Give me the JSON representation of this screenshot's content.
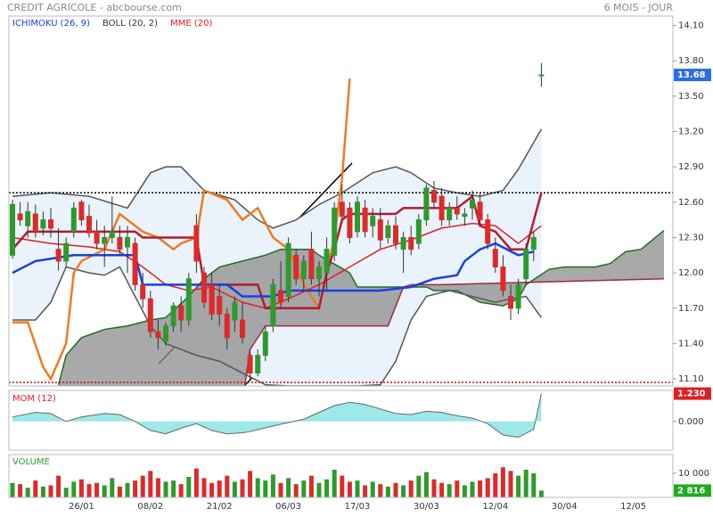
{
  "header": {
    "title": "CREDIT AGRICOLE - abcbourse.com",
    "period": "6 MOIS - JOUR"
  },
  "chart_data": [
    {
      "type": "candlestick",
      "legend": [
        {
          "name": "ICHIMOKU (26, 9)",
          "color": "#1a3fe0"
        },
        {
          "name": "BOLL (20, 2)",
          "color": "#333333"
        },
        {
          "name": "MME (20)",
          "color": "#e02020"
        }
      ],
      "categories": [
        null,
        null,
        null,
        null,
        null,
        null,
        null,
        null,
        null,
        "26/01",
        null,
        null,
        null,
        null,
        null,
        null,
        null,
        null,
        "08/02",
        null,
        null,
        null,
        null,
        null,
        null,
        null,
        null,
        "21/02",
        null,
        null,
        null,
        null,
        null,
        null,
        null,
        null,
        "06/03",
        null,
        null,
        null,
        null,
        null,
        null,
        null,
        null,
        "17/03",
        null,
        null,
        null,
        null,
        null,
        null,
        null,
        null,
        "30/03",
        null,
        null,
        null,
        null,
        null,
        null,
        null,
        null,
        "12/04",
        null,
        null,
        null,
        null,
        null,
        null,
        null,
        null,
        "30/04",
        null,
        null,
        null,
        null,
        null,
        null,
        null,
        null,
        "12/05",
        null,
        null,
        null,
        null
      ],
      "ohlc": [
        [
          12.15,
          12.62,
          12.12,
          12.58
        ],
        [
          12.5,
          12.6,
          12.4,
          12.45
        ],
        [
          12.4,
          12.6,
          12.3,
          12.52
        ],
        [
          12.5,
          12.58,
          12.3,
          12.35
        ],
        [
          12.38,
          12.52,
          12.32,
          12.45
        ],
        [
          12.45,
          12.55,
          12.3,
          12.38
        ],
        [
          12.2,
          12.38,
          12.02,
          12.1
        ],
        [
          12.1,
          12.3,
          12.05,
          12.25
        ],
        [
          12.35,
          12.6,
          12.3,
          12.55
        ],
        [
          12.6,
          12.62,
          12.4,
          12.45
        ],
        [
          12.48,
          12.58,
          12.3,
          12.34
        ],
        [
          12.35,
          12.45,
          12.2,
          12.25
        ],
        [
          12.25,
          12.4,
          12.05,
          12.3
        ],
        [
          12.3,
          12.65,
          12.25,
          12.35
        ],
        [
          12.3,
          12.4,
          12.15,
          12.2
        ],
        [
          12.22,
          12.4,
          12.0,
          12.3
        ],
        [
          12.25,
          12.3,
          11.85,
          11.9
        ],
        [
          11.9,
          12.0,
          11.7,
          11.78
        ],
        [
          11.78,
          11.85,
          11.45,
          11.5
        ],
        [
          11.5,
          11.6,
          11.35,
          11.45
        ],
        [
          11.42,
          11.58,
          11.38,
          11.55
        ],
        [
          11.55,
          11.75,
          11.5,
          11.72
        ],
        [
          11.72,
          11.8,
          11.5,
          11.6
        ],
        [
          11.6,
          12.0,
          11.55,
          11.95
        ],
        [
          12.4,
          12.5,
          12.0,
          12.1
        ],
        [
          12.0,
          12.05,
          11.7,
          11.75
        ],
        [
          11.9,
          12.0,
          11.6,
          11.65
        ],
        [
          11.8,
          11.9,
          11.55,
          11.65
        ],
        [
          11.65,
          11.7,
          11.35,
          11.45
        ],
        [
          11.6,
          11.8,
          11.5,
          11.75
        ],
        [
          11.6,
          11.75,
          11.4,
          11.45
        ],
        [
          11.3,
          11.35,
          11.1,
          11.15
        ],
        [
          11.15,
          11.35,
          11.12,
          11.3
        ],
        [
          11.3,
          11.55,
          11.25,
          11.5
        ],
        [
          11.55,
          11.95,
          11.5,
          11.9
        ],
        [
          11.85,
          12.1,
          11.7,
          11.75
        ],
        [
          11.8,
          12.3,
          11.75,
          12.25
        ],
        [
          12.15,
          12.2,
          11.9,
          11.95
        ],
        [
          11.95,
          12.15,
          11.85,
          12.1
        ],
        [
          12.2,
          12.35,
          11.9,
          11.95
        ],
        [
          11.95,
          12.1,
          11.8,
          12.05
        ],
        [
          12.0,
          12.3,
          11.85,
          12.2
        ],
        [
          12.15,
          12.6,
          12.1,
          12.55
        ],
        [
          12.6,
          12.75,
          12.45,
          12.48
        ],
        [
          12.55,
          12.6,
          12.25,
          12.3
        ],
        [
          12.35,
          12.65,
          12.3,
          12.6
        ],
        [
          12.55,
          12.62,
          12.3,
          12.35
        ],
        [
          12.4,
          12.55,
          12.3,
          12.48
        ],
        [
          12.45,
          12.55,
          12.2,
          12.28
        ],
        [
          12.3,
          12.45,
          12.25,
          12.4
        ],
        [
          12.4,
          12.48,
          12.2,
          12.25
        ],
        [
          12.2,
          12.35,
          12.0,
          12.3
        ],
        [
          12.3,
          12.4,
          12.15,
          12.2
        ],
        [
          12.25,
          12.5,
          12.2,
          12.45
        ],
        [
          12.45,
          12.75,
          12.4,
          12.72
        ],
        [
          12.7,
          12.78,
          12.55,
          12.6
        ],
        [
          12.65,
          12.72,
          12.4,
          12.45
        ],
        [
          12.45,
          12.6,
          12.4,
          12.55
        ],
        [
          12.55,
          12.65,
          12.45,
          12.5
        ],
        [
          12.48,
          12.55,
          12.4,
          12.5
        ],
        [
          12.55,
          12.7,
          12.45,
          12.62
        ],
        [
          12.6,
          12.68,
          12.4,
          12.45
        ],
        [
          12.45,
          12.5,
          12.2,
          12.25
        ],
        [
          12.2,
          12.3,
          12.0,
          12.05
        ],
        [
          12.05,
          12.15,
          11.8,
          11.85
        ],
        [
          11.8,
          11.9,
          11.6,
          11.7
        ],
        [
          11.7,
          11.95,
          11.65,
          11.9
        ],
        [
          11.95,
          12.25,
          11.9,
          12.2
        ],
        [
          12.2,
          12.35,
          12.1,
          12.3
        ],
        [
          13.68,
          13.78,
          13.58,
          13.68
        ],
        null,
        null,
        null,
        null,
        null,
        null,
        null,
        null,
        null,
        null,
        null,
        null,
        null,
        null,
        null,
        null
      ],
      "up_color": "#2e9a2e",
      "down_color": "#dd2a2a",
      "ylim": [
        11.04,
        14.18
      ],
      "yticks": [
        {
          "value": 11.1,
          "label": "11.10"
        },
        {
          "value": 11.4,
          "label": "11.40"
        },
        {
          "value": 11.7,
          "label": "11.70"
        },
        {
          "value": 12.0,
          "label": "12.00"
        },
        {
          "value": 12.3,
          "label": "12.30"
        },
        {
          "value": 12.6,
          "label": "12.60"
        },
        {
          "value": 12.9,
          "label": "12.90"
        },
        {
          "value": 13.2,
          "label": "13.20"
        },
        {
          "value": 13.5,
          "label": "13.50"
        },
        {
          "value": 13.8,
          "label": "13.80"
        },
        {
          "value": 14.1,
          "label": "14.10"
        }
      ],
      "bollinger": {
        "color": "#555555",
        "fill": "#eaf3fc",
        "upper": {
          "x": [
            0,
            5,
            10,
            15,
            18,
            20,
            22,
            25,
            29,
            32,
            34,
            37,
            40,
            43,
            47,
            50,
            52,
            55,
            58,
            61,
            64,
            66,
            69
          ],
          "values": [
            12.65,
            12.68,
            12.65,
            12.55,
            12.85,
            12.9,
            12.9,
            12.7,
            12.62,
            12.45,
            12.38,
            12.45,
            12.58,
            12.68,
            12.85,
            12.9,
            12.85,
            12.72,
            12.68,
            12.65,
            12.7,
            12.88,
            13.22
          ]
        },
        "lower": {
          "x": [
            0,
            3,
            5,
            7,
            10,
            12,
            14,
            16,
            18,
            20,
            22,
            24,
            27,
            30,
            33,
            36,
            40,
            45,
            48,
            50,
            52,
            54,
            57,
            60,
            63,
            65,
            67,
            69
          ],
          "values": [
            11.6,
            11.6,
            11.75,
            12.05,
            12.0,
            11.98,
            12.05,
            11.8,
            11.55,
            11.4,
            11.35,
            11.3,
            11.25,
            11.15,
            11.05,
            11.04,
            11.04,
            11.04,
            11.05,
            11.25,
            11.6,
            11.8,
            11.85,
            11.8,
            11.75,
            11.78,
            11.8,
            11.62
          ]
        }
      },
      "mme": {
        "color": "#e02020",
        "x": [
          0,
          5,
          10,
          14,
          17,
          20,
          23,
          26,
          30,
          33,
          36,
          40,
          44,
          48,
          52,
          56,
          60,
          63,
          66,
          69
        ],
        "values": [
          12.3,
          12.25,
          12.22,
          12.18,
          12.05,
          11.9,
          11.85,
          11.88,
          11.75,
          11.7,
          11.78,
          11.9,
          12.05,
          12.2,
          12.28,
          12.38,
          12.42,
          12.4,
          12.25,
          12.4
        ]
      },
      "ichimoku": {
        "cloud": "#8c8c8c",
        "tenkan": {
          "color": "#1a3fe0",
          "x": [
            0,
            3,
            8,
            16,
            17,
            24,
            28,
            30,
            34,
            36,
            40,
            48,
            52,
            55,
            58,
            59,
            61,
            63,
            66,
            68
          ],
          "values": [
            12.0,
            12.1,
            12.15,
            12.15,
            11.9,
            11.9,
            11.9,
            11.8,
            11.8,
            11.85,
            11.85,
            11.85,
            11.88,
            11.95,
            11.98,
            12.1,
            12.2,
            12.25,
            12.15,
            12.18
          ]
        },
        "kijun": {
          "color": "#b01c2e",
          "x": [
            0,
            2,
            10,
            16,
            17,
            24,
            25,
            32,
            33,
            40,
            41,
            42,
            43,
            44,
            50,
            51,
            58,
            60,
            61,
            63,
            65,
            67,
            69
          ],
          "values": [
            12.2,
            12.35,
            12.35,
            12.35,
            12.3,
            12.3,
            11.9,
            11.9,
            11.7,
            11.7,
            12.0,
            12.2,
            12.45,
            12.5,
            12.5,
            12.55,
            12.55,
            12.65,
            12.4,
            12.35,
            12.2,
            12.2,
            12.68
          ]
        },
        "chikou": {
          "color": "#f07a20",
          "x": [
            0,
            2,
            4,
            5,
            7,
            8,
            9,
            12,
            14,
            15,
            17,
            19,
            21,
            22,
            24,
            25,
            28,
            30,
            32,
            34,
            36,
            38,
            40,
            42,
            43,
            44
          ],
          "values": [
            11.58,
            11.58,
            11.2,
            11.1,
            11.4,
            12.0,
            12.1,
            12.2,
            12.5,
            12.45,
            12.35,
            12.3,
            12.2,
            12.25,
            12.3,
            12.7,
            12.62,
            12.45,
            12.55,
            12.3,
            12.2,
            11.9,
            11.7,
            12.3,
            12.8,
            13.65
          ]
        },
        "senkou_a": {
          "color": "#1f6e1f",
          "x": [
            6,
            7,
            9,
            12,
            15,
            18,
            20,
            23,
            25,
            27,
            30,
            33,
            35,
            39,
            40,
            44,
            45,
            47,
            54,
            55,
            58,
            61,
            64,
            66,
            67,
            70,
            72,
            76,
            78,
            80,
            82,
            85
          ],
          "values": [
            11.05,
            11.3,
            11.45,
            11.52,
            11.55,
            11.6,
            11.62,
            11.8,
            11.95,
            12.05,
            12.1,
            12.15,
            12.2,
            12.2,
            12.15,
            12.0,
            11.88,
            11.88,
            11.88,
            11.85,
            11.85,
            11.75,
            11.72,
            11.78,
            11.9,
            12.03,
            12.05,
            12.05,
            12.08,
            12.18,
            12.2,
            12.36
          ]
        },
        "senkou_b": {
          "color": "#a02a3a",
          "x": [
            6,
            30,
            31,
            33,
            44,
            49,
            51,
            52,
            56,
            85
          ],
          "values": [
            10.9,
            10.9,
            11.35,
            11.55,
            11.55,
            11.55,
            11.88,
            11.9,
            11.9,
            11.95
          ]
        }
      },
      "levels": [
        {
          "value": 12.68,
          "color": "#000000"
        },
        {
          "value": 11.07,
          "color": "#c01010"
        }
      ],
      "last_price": {
        "value": 13.68,
        "label": "13.68",
        "color": "#2a6ee0"
      }
    },
    {
      "type": "area",
      "title": "MOM (12)",
      "color": "#9de8e8",
      "line": "#666666",
      "x": [
        0,
        3,
        5,
        7,
        9,
        12,
        14,
        16,
        18,
        20,
        22,
        24,
        26,
        28,
        30,
        31,
        34,
        36,
        38,
        40,
        42,
        44,
        46,
        48,
        50,
        52,
        54,
        56,
        58,
        60,
        62,
        64,
        66,
        68,
        69
      ],
      "values": [
        0.2,
        0.4,
        0.35,
        0.0,
        0.2,
        0.35,
        0.3,
        0.0,
        -0.4,
        -0.55,
        -0.3,
        -0.1,
        -0.4,
        -0.55,
        -0.5,
        -0.45,
        -0.2,
        -0.05,
        0.1,
        0.4,
        0.7,
        0.85,
        0.75,
        0.55,
        0.35,
        0.3,
        0.45,
        0.4,
        0.25,
        0.15,
        -0.1,
        -0.6,
        -0.7,
        -0.35,
        1.23
      ],
      "ylim": [
        -1.27,
        1.37
      ],
      "yticks": [
        {
          "value": 0,
          "label": "0.000"
        }
      ],
      "last_label": {
        "value": 1.23,
        "label": "1.230",
        "color": "#dd2020"
      }
    },
    {
      "type": "bar",
      "title": "VOLUME",
      "values": [
        6000,
        5500,
        4000,
        7000,
        4500,
        5000,
        9000,
        4000,
        6500,
        7500,
        5500,
        6000,
        5000,
        8000,
        4500,
        6000,
        7000,
        9000,
        11000,
        8000,
        6500,
        7000,
        5500,
        8500,
        12000,
        8000,
        6000,
        7000,
        9000,
        6500,
        7500,
        11000,
        8000,
        7000,
        9500,
        6000,
        8000,
        5500,
        7000,
        9000,
        6000,
        7500,
        11500,
        9000,
        6500,
        7000,
        5000,
        6500,
        5500,
        4500,
        6000,
        5000,
        7000,
        9000,
        10500,
        7500,
        6000,
        5500,
        7000,
        5000,
        6500,
        7000,
        8000,
        10000,
        12500,
        11000,
        9000,
        11500,
        10000,
        2816
      ],
      "ylim": [
        0,
        17778
      ],
      "yticks": [
        {
          "value": 10000,
          "label": "10 000"
        }
      ],
      "last_label": {
        "value": 2816,
        "label": "2 816",
        "color": "#22aa22"
      }
    }
  ]
}
